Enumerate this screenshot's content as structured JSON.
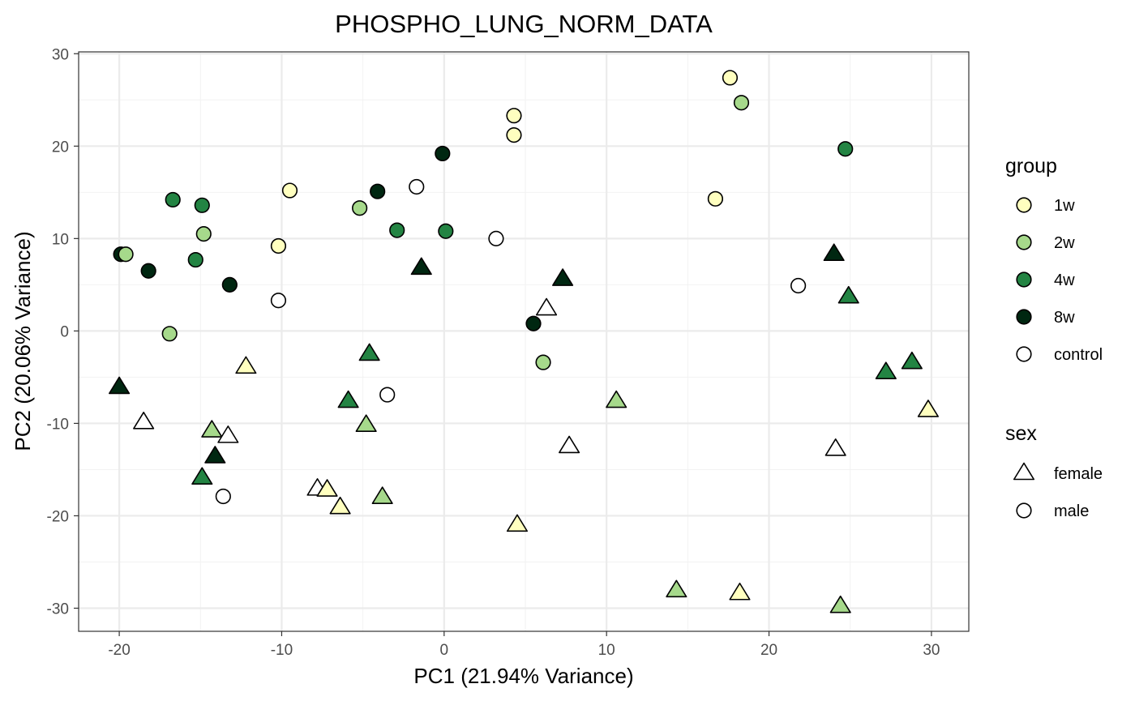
{
  "chart_data": {
    "type": "scatter",
    "title": "PHOSPHO_LUNG_NORM_DATA",
    "xlabel": "PC1 (21.94% Variance)",
    "ylabel": "PC2 (20.06% Variance)",
    "xlim": [
      -22.5,
      32.3
    ],
    "ylim": [
      -32.5,
      30.2
    ],
    "x_ticks": [
      -20,
      -10,
      0,
      10,
      20,
      30
    ],
    "x_tick_labels": [
      "-20",
      "-10",
      "0",
      "10",
      "20",
      "30"
    ],
    "y_ticks": [
      -30,
      -20,
      -10,
      0,
      10,
      20,
      30
    ],
    "y_tick_labels": [
      "-30",
      "-20",
      "-10",
      "0",
      "10",
      "20",
      "30"
    ],
    "grid": true,
    "legend_placement": "right",
    "legends": {
      "group": {
        "title": "group",
        "entries": [
          {
            "key": "1w",
            "label": "1w",
            "color": "#FFFFBF"
          },
          {
            "key": "2w",
            "label": "2w",
            "color": "#A6D98B"
          },
          {
            "key": "4w",
            "label": "4w",
            "color": "#238443"
          },
          {
            "key": "8w",
            "label": "8w",
            "color": "#002711"
          },
          {
            "key": "control",
            "label": "control",
            "color": "#FFFFFF"
          }
        ]
      },
      "sex": {
        "title": "sex",
        "entries": [
          {
            "key": "female",
            "label": "female",
            "shape": "triangle"
          },
          {
            "key": "male",
            "label": "male",
            "shape": "circle"
          }
        ]
      }
    },
    "points": [
      {
        "x": 17.6,
        "y": 27.4,
        "group": "1w",
        "sex": "male"
      },
      {
        "x": 18.3,
        "y": 24.7,
        "group": "2w",
        "sex": "male"
      },
      {
        "x": 4.3,
        "y": 23.3,
        "group": "1w",
        "sex": "male"
      },
      {
        "x": 4.3,
        "y": 21.2,
        "group": "1w",
        "sex": "male"
      },
      {
        "x": 24.7,
        "y": 19.7,
        "group": "4w",
        "sex": "male"
      },
      {
        "x": -0.1,
        "y": 19.2,
        "group": "8w",
        "sex": "male"
      },
      {
        "x": 16.7,
        "y": 14.3,
        "group": "1w",
        "sex": "male"
      },
      {
        "x": -1.7,
        "y": 15.6,
        "group": "control",
        "sex": "male"
      },
      {
        "x": -4.1,
        "y": 15.1,
        "group": "8w",
        "sex": "male"
      },
      {
        "x": -9.5,
        "y": 15.2,
        "group": "1w",
        "sex": "male"
      },
      {
        "x": -16.7,
        "y": 14.2,
        "group": "4w",
        "sex": "male"
      },
      {
        "x": -14.9,
        "y": 13.6,
        "group": "4w",
        "sex": "male"
      },
      {
        "x": -5.2,
        "y": 13.3,
        "group": "2w",
        "sex": "male"
      },
      {
        "x": -2.9,
        "y": 10.9,
        "group": "4w",
        "sex": "male"
      },
      {
        "x": 0.1,
        "y": 10.8,
        "group": "4w",
        "sex": "male"
      },
      {
        "x": -14.8,
        "y": 10.5,
        "group": "2w",
        "sex": "male"
      },
      {
        "x": 3.2,
        "y": 10.0,
        "group": "control",
        "sex": "male"
      },
      {
        "x": -10.2,
        "y": 9.2,
        "group": "1w",
        "sex": "male"
      },
      {
        "x": -19.9,
        "y": 8.3,
        "group": "8w",
        "sex": "male"
      },
      {
        "x": -19.6,
        "y": 8.3,
        "group": "2w",
        "sex": "male"
      },
      {
        "x": -15.3,
        "y": 7.7,
        "group": "4w",
        "sex": "male"
      },
      {
        "x": -18.2,
        "y": 6.5,
        "group": "8w",
        "sex": "male"
      },
      {
        "x": -13.2,
        "y": 5.0,
        "group": "8w",
        "sex": "male"
      },
      {
        "x": 21.8,
        "y": 4.9,
        "group": "control",
        "sex": "male"
      },
      {
        "x": -10.2,
        "y": 3.3,
        "group": "control",
        "sex": "male"
      },
      {
        "x": 5.5,
        "y": 0.8,
        "group": "8w",
        "sex": "male"
      },
      {
        "x": -16.9,
        "y": -0.3,
        "group": "2w",
        "sex": "male"
      },
      {
        "x": 6.1,
        "y": -3.4,
        "group": "2w",
        "sex": "male"
      },
      {
        "x": -3.5,
        "y": -6.9,
        "group": "control",
        "sex": "male"
      },
      {
        "x": -13.6,
        "y": -17.9,
        "group": "control",
        "sex": "male"
      },
      {
        "x": -1.4,
        "y": 6.8,
        "group": "8w",
        "sex": "female"
      },
      {
        "x": 7.3,
        "y": 5.6,
        "group": "8w",
        "sex": "female"
      },
      {
        "x": 6.3,
        "y": 2.4,
        "group": "control",
        "sex": "female"
      },
      {
        "x": 24.0,
        "y": 8.3,
        "group": "8w",
        "sex": "female"
      },
      {
        "x": 24.9,
        "y": 3.7,
        "group": "4w",
        "sex": "female"
      },
      {
        "x": -4.6,
        "y": -2.5,
        "group": "4w",
        "sex": "female"
      },
      {
        "x": -12.2,
        "y": -3.9,
        "group": "1w",
        "sex": "female"
      },
      {
        "x": -20.0,
        "y": -6.1,
        "group": "8w",
        "sex": "female"
      },
      {
        "x": 28.8,
        "y": -3.4,
        "group": "4w",
        "sex": "female"
      },
      {
        "x": 27.2,
        "y": -4.5,
        "group": "4w",
        "sex": "female"
      },
      {
        "x": -5.9,
        "y": -7.6,
        "group": "4w",
        "sex": "female"
      },
      {
        "x": 10.6,
        "y": -7.6,
        "group": "2w",
        "sex": "female"
      },
      {
        "x": 29.8,
        "y": -8.6,
        "group": "1w",
        "sex": "female"
      },
      {
        "x": -18.5,
        "y": -9.9,
        "group": "control",
        "sex": "female"
      },
      {
        "x": -4.8,
        "y": -10.2,
        "group": "2w",
        "sex": "female"
      },
      {
        "x": -14.3,
        "y": -10.8,
        "group": "2w",
        "sex": "female"
      },
      {
        "x": -13.3,
        "y": -11.4,
        "group": "control",
        "sex": "female"
      },
      {
        "x": 7.7,
        "y": -12.5,
        "group": "control",
        "sex": "female"
      },
      {
        "x": 24.1,
        "y": -12.8,
        "group": "control",
        "sex": "female"
      },
      {
        "x": -14.1,
        "y": -13.6,
        "group": "8w",
        "sex": "female"
      },
      {
        "x": -14.9,
        "y": -15.9,
        "group": "4w",
        "sex": "female"
      },
      {
        "x": -7.8,
        "y": -17.1,
        "group": "control",
        "sex": "female"
      },
      {
        "x": -7.2,
        "y": -17.2,
        "group": "1w",
        "sex": "female"
      },
      {
        "x": -3.8,
        "y": -18.0,
        "group": "2w",
        "sex": "female"
      },
      {
        "x": -6.4,
        "y": -19.1,
        "group": "1w",
        "sex": "female"
      },
      {
        "x": 4.5,
        "y": -21.0,
        "group": "1w",
        "sex": "female"
      },
      {
        "x": 14.3,
        "y": -28.1,
        "group": "2w",
        "sex": "female"
      },
      {
        "x": 18.2,
        "y": -28.4,
        "group": "1w",
        "sex": "female"
      },
      {
        "x": 24.4,
        "y": -29.8,
        "group": "2w",
        "sex": "female"
      }
    ]
  }
}
